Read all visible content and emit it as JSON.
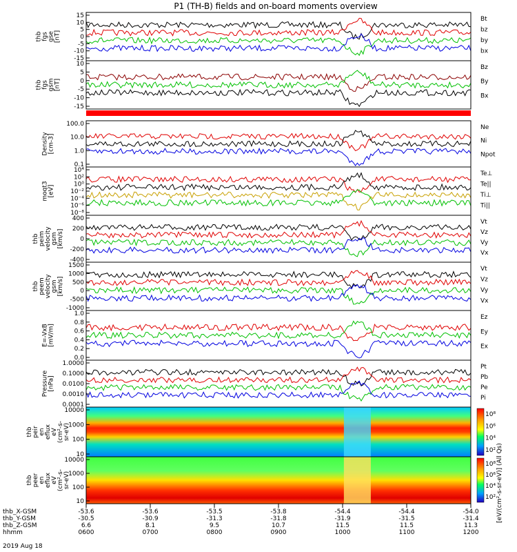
{
  "title": "P1 (TH-B) fields and on-board moments overview",
  "panels": [
    {
      "id": "fgs-gse",
      "ylabel": [
        "thb",
        "fgs",
        "gse",
        "[nT]"
      ],
      "yticks": [
        "15",
        "10",
        "5",
        "0",
        "-5",
        "-10",
        "-15"
      ],
      "ylim": [
        -15,
        15
      ],
      "legend": [
        {
          "text": "Bt",
          "color": "#000000"
        },
        {
          "text": "bz",
          "color": "#e00000"
        },
        {
          "text": "by",
          "color": "#00c000"
        },
        {
          "text": "bx",
          "color": "#0000e0"
        }
      ]
    },
    {
      "id": "fgs-gsm",
      "ylabel": [
        "thb",
        "fgs",
        "gsm",
        "[nT]"
      ],
      "yticks": [
        "10",
        "5",
        "0",
        "-5",
        "-10",
        "-15"
      ],
      "ylim": [
        -18,
        12
      ],
      "legend": [
        {
          "text": "Bz",
          "color": "#8b0000"
        },
        {
          "text": "By",
          "color": "#00c000"
        },
        {
          "text": "Bx",
          "color": "#000000"
        }
      ]
    },
    {
      "id": "density",
      "ylabel": [
        "Density",
        "[cm-3]"
      ],
      "yticks": [
        "100.0",
        "10.0",
        "1.0",
        "0.1"
      ],
      "log": true,
      "legend": [
        {
          "text": "Ne",
          "color": "#e00000"
        },
        {
          "text": "Ni",
          "color": "#000000"
        },
        {
          "text": "Npot",
          "color": "#0000e0"
        }
      ]
    },
    {
      "id": "temperature",
      "ylabel": [
        "moqt3",
        "[eV]"
      ],
      "yticks": [
        "10⁴",
        "10²",
        "10⁰",
        "10⁻²",
        "10⁻⁴",
        "10⁻⁶",
        "10⁻⁸"
      ],
      "log": true,
      "legend": [
        {
          "text": "Te⊥",
          "color": "#e00000"
        },
        {
          "text": "Te||",
          "color": "#000000"
        },
        {
          "text": "Ti⊥",
          "color": "#c8a000"
        },
        {
          "text": "Ti||",
          "color": "#00c000"
        }
      ]
    },
    {
      "id": "peim-velocity",
      "ylabel": [
        "thb",
        "peim",
        "velocity",
        "gsm",
        "[km/s]"
      ],
      "yticks": [
        "400",
        "200",
        "0",
        "-200",
        "-400"
      ],
      "ylim": [
        -400,
        400
      ],
      "legend": [
        {
          "text": "Vt",
          "color": "#000000"
        },
        {
          "text": "Vz",
          "color": "#e00000"
        },
        {
          "text": "Vy",
          "color": "#00c000"
        },
        {
          "text": "Vx",
          "color": "#0000e0"
        }
      ]
    },
    {
      "id": "peem-velocity",
      "ylabel": [
        "thb",
        "peem",
        "velocity",
        "gsm",
        "[km/s]"
      ],
      "yticks": [
        "1500",
        "1000",
        "500",
        "0",
        "-500",
        "-1000"
      ],
      "ylim": [
        -1000,
        1500
      ],
      "legend": [
        {
          "text": "Vt",
          "color": "#000000"
        },
        {
          "text": "Vz",
          "color": "#e00000"
        },
        {
          "text": "Vy",
          "color": "#00c000"
        },
        {
          "text": "Vx",
          "color": "#0000e0"
        }
      ]
    },
    {
      "id": "efield",
      "ylabel": [
        "E=-VxB",
        "[mV/m]"
      ],
      "yticks": [
        "1.0",
        "0.8",
        "0.6",
        "0.4",
        "0.2",
        "0.0"
      ],
      "ylim": [
        0,
        1
      ],
      "legend": [
        {
          "text": "Ez",
          "color": "#e00000"
        },
        {
          "text": "Ey",
          "color": "#00c000"
        },
        {
          "text": "Ex",
          "color": "#0000e0"
        }
      ]
    },
    {
      "id": "pressure",
      "ylabel": [
        "Pressure",
        "[nPa]"
      ],
      "yticks": [
        "1.0000",
        "0.1000",
        "0.0100",
        "0.0010",
        "0.0001"
      ],
      "log": true,
      "legend": [
        {
          "text": "Pt",
          "color": "#000000"
        },
        {
          "text": "Pb",
          "color": "#e00000"
        },
        {
          "text": "Pe",
          "color": "#00c000"
        },
        {
          "text": "Pi",
          "color": "#0000e0"
        }
      ]
    },
    {
      "id": "peir-spec",
      "ylabel": [
        "thb",
        "peir",
        "en",
        "eflux",
        "eV",
        "(cm²-s-",
        "sr-eV)"
      ],
      "yticks": [
        "10000",
        "1000",
        "100",
        "10"
      ],
      "colorbar_ticks": [
        "10⁸",
        "10⁶",
        "10⁴",
        "10²"
      ]
    },
    {
      "id": "peer-spec",
      "ylabel": [
        "thb",
        "peer",
        "en",
        "eflux",
        "eV",
        "(cm²-s-",
        "sr-eV)"
      ],
      "yticks": [
        "10000",
        "1000",
        "100",
        "10"
      ],
      "colorbar_ticks": [
        "10⁸",
        "10⁶",
        "10⁴",
        "10²"
      ]
    }
  ],
  "colorbar_label": "[eV/(cm²-s-sr-eV)] (All Qs)",
  "axis": {
    "rows": [
      {
        "label": "thb_X-GSM",
        "values": [
          "-53.6",
          "-53.6",
          "-53.5",
          "-53.8",
          "-54.4",
          "-54.4",
          "-54.0"
        ]
      },
      {
        "label": "thb_Y-GSM",
        "values": [
          "-30.5",
          "-30.9",
          "-31.3",
          "-31.8",
          "-31.9",
          "-31.5",
          "-31.4"
        ]
      },
      {
        "label": "thb_Z-GSM",
        "values": [
          "6.6",
          "8.1",
          "9.5",
          "10.7",
          "11.5",
          "11.5",
          "11.3"
        ]
      },
      {
        "label": "hhmm",
        "values": [
          "0600",
          "0700",
          "0800",
          "0900",
          "1000",
          "1100",
          "1200"
        ]
      }
    ],
    "date": "2019 Aug 18"
  },
  "chart_data": {
    "type": "line",
    "title": "P1 (TH-B) fields and on-board moments overview",
    "x_label": "hhmm",
    "x": [
      "0600",
      "0700",
      "0800",
      "0900",
      "1000",
      "1100",
      "1200"
    ],
    "series": [
      {
        "name": "Bt",
        "panel": "fgs-gse",
        "values": [
          8,
          10,
          6,
          7,
          2,
          5,
          4
        ]
      },
      {
        "name": "bz",
        "panel": "fgs-gse",
        "values": [
          5,
          6,
          4,
          6,
          1,
          4,
          4
        ]
      },
      {
        "name": "by",
        "panel": "fgs-gse",
        "values": [
          2,
          3,
          3,
          2,
          -2,
          2,
          2
        ]
      },
      {
        "name": "bx",
        "panel": "fgs-gse",
        "values": [
          -4,
          -2,
          -3,
          -3,
          -8,
          -3,
          -2
        ]
      },
      {
        "name": "Ne",
        "panel": "density",
        "values": [
          30,
          20,
          25,
          20,
          0.05,
          12,
          10
        ]
      },
      {
        "name": "Npot",
        "panel": "density",
        "values": [
          50,
          30,
          30,
          25,
          0.1,
          15,
          12
        ]
      },
      {
        "name": "Vt",
        "panel": "peim-velocity",
        "values": [
          300,
          300,
          300,
          300,
          150,
          300,
          300
        ]
      },
      {
        "name": "Vx",
        "panel": "peim-velocity",
        "values": [
          -350,
          -350,
          -350,
          -350,
          -50,
          -350,
          -350
        ]
      },
      {
        "name": "Pt",
        "panel": "pressure",
        "values": [
          0.2,
          0.15,
          0.12,
          0.1,
          0.02,
          0.1,
          0.1
        ]
      },
      {
        "name": "Pb",
        "panel": "pressure",
        "values": [
          0.03,
          0.02,
          0.02,
          0.02,
          0.005,
          0.03,
          0.03
        ]
      }
    ]
  }
}
